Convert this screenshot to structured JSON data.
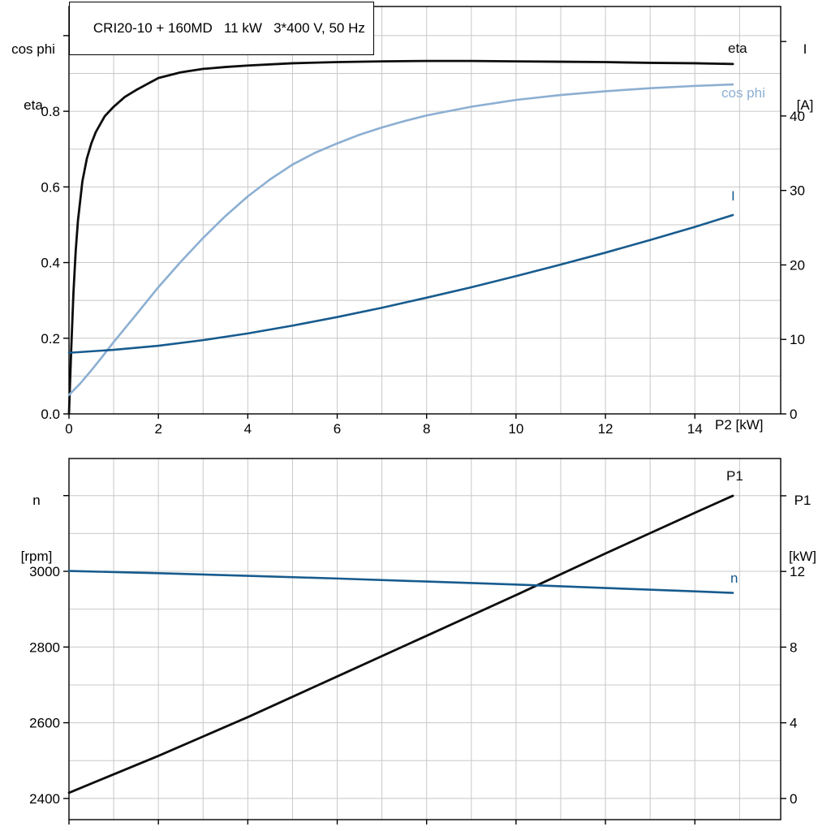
{
  "title": "CRI20-10 + 160MD   11 kW   3*400 V, 50 Hz",
  "style": {
    "background": "#ffffff",
    "grid_color": "#c8c8c8",
    "frame_color": "#000000",
    "text_color": "#000000",
    "black_curve": "#0d0d0d",
    "light_blue_curve": "#8cafd2",
    "dark_blue_curve": "#175b8e"
  },
  "chart_data": [
    {
      "type": "line",
      "name": "motor-electrical-chart",
      "title": "CRI20-10 + 160MD   11 kW   3*400 V, 50 Hz",
      "xlabel": "P2 [kW]",
      "grid": true,
      "x_axis": {
        "range": [
          0,
          15.92
        ],
        "grid_step": 1,
        "ticks": [
          {
            "v": 0,
            "label": "0"
          },
          {
            "v": 2,
            "label": "2"
          },
          {
            "v": 4,
            "label": "4"
          },
          {
            "v": 6,
            "label": "6"
          },
          {
            "v": 8,
            "label": "8"
          },
          {
            "v": 10,
            "label": "10"
          },
          {
            "v": 12,
            "label": "12"
          },
          {
            "v": 14,
            "label": "14"
          }
        ]
      },
      "left_axis": {
        "title_lines": [
          "cos phi",
          "eta"
        ],
        "range": [
          0,
          1.077
        ],
        "grid_step": 0.1,
        "ticks": [
          {
            "v": 0,
            "label": "0.0"
          },
          {
            "v": 0.2,
            "label": "0.2"
          },
          {
            "v": 0.4,
            "label": "0.4"
          },
          {
            "v": 0.6,
            "label": "0.6"
          },
          {
            "v": 0.8,
            "label": "0.8"
          },
          {
            "v": 1.0,
            "label": ""
          }
        ]
      },
      "right_axis": {
        "title_lines": [
          "I",
          "[A]"
        ],
        "range": [
          0,
          54.7
        ],
        "ticks": [
          {
            "v": 0,
            "label": "0"
          },
          {
            "v": 10,
            "label": "10"
          },
          {
            "v": 20,
            "label": "20"
          },
          {
            "v": 30,
            "label": "30"
          },
          {
            "v": 40,
            "label": "40"
          },
          {
            "v": 50,
            "label": ""
          }
        ]
      },
      "series": [
        {
          "name": "eta",
          "label": "eta",
          "axis": "left",
          "color": "#0d0d0d",
          "width": 2.8,
          "x": [
            0,
            0.05,
            0.1,
            0.15,
            0.2,
            0.3,
            0.4,
            0.5,
            0.6,
            0.8,
            1,
            1.25,
            1.5,
            1.75,
            2,
            2.5,
            3,
            3.5,
            4,
            5,
            6,
            7,
            8,
            9,
            10,
            11,
            12,
            13,
            14,
            14.85
          ],
          "y": [
            0,
            0.17,
            0.32,
            0.43,
            0.51,
            0.615,
            0.675,
            0.715,
            0.745,
            0.787,
            0.812,
            0.838,
            0.856,
            0.872,
            0.888,
            0.903,
            0.912,
            0.917,
            0.921,
            0.927,
            0.93,
            0.932,
            0.933,
            0.933,
            0.932,
            0.931,
            0.93,
            0.928,
            0.927,
            0.925
          ]
        },
        {
          "name": "cos-phi",
          "label": "cos phi",
          "axis": "left",
          "color": "#8cafd2",
          "width": 2.6,
          "x": [
            0,
            0.25,
            0.5,
            0.75,
            1,
            1.25,
            1.5,
            2,
            2.5,
            3,
            3.5,
            4,
            4.5,
            5,
            5.5,
            6,
            6.5,
            7,
            7.5,
            8,
            9,
            10,
            11,
            12,
            13,
            14,
            14.85
          ],
          "y": [
            0.05,
            0.08,
            0.115,
            0.152,
            0.19,
            0.226,
            0.262,
            0.335,
            0.402,
            0.465,
            0.523,
            0.575,
            0.62,
            0.659,
            0.69,
            0.715,
            0.738,
            0.757,
            0.774,
            0.789,
            0.812,
            0.83,
            0.843,
            0.853,
            0.861,
            0.867,
            0.871
          ]
        },
        {
          "name": "current",
          "label": "I",
          "axis": "right",
          "color": "#175b8e",
          "width": 2.6,
          "x": [
            0,
            1,
            2,
            3,
            4,
            5,
            6,
            7,
            8,
            9,
            10,
            11,
            12,
            13,
            14,
            14.85
          ],
          "y": [
            8.2,
            8.6,
            9.15,
            9.9,
            10.8,
            11.85,
            13.0,
            14.25,
            15.6,
            17.0,
            18.5,
            20.05,
            21.65,
            23.35,
            25.1,
            26.7
          ]
        }
      ]
    },
    {
      "type": "line",
      "name": "speed-power-chart",
      "title": "",
      "xlabel": "",
      "grid": true,
      "x_axis": {
        "range": [
          0,
          15.92
        ],
        "grid_step": 1,
        "ticks": [
          {
            "v": 0,
            "label": ""
          },
          {
            "v": 2,
            "label": ""
          },
          {
            "v": 4,
            "label": ""
          },
          {
            "v": 6,
            "label": ""
          },
          {
            "v": 8,
            "label": ""
          },
          {
            "v": 10,
            "label": ""
          },
          {
            "v": 12,
            "label": ""
          },
          {
            "v": 14,
            "label": ""
          }
        ]
      },
      "left_axis": {
        "title_lines": [
          "n",
          "[rpm]"
        ],
        "range": [
          2344,
          3298
        ],
        "grid_step": 100,
        "ticks": [
          {
            "v": 2400,
            "label": "2400"
          },
          {
            "v": 2600,
            "label": "2600"
          },
          {
            "v": 2800,
            "label": "2800"
          },
          {
            "v": 3000,
            "label": "3000"
          },
          {
            "v": 3200,
            "label": ""
          }
        ]
      },
      "right_axis": {
        "title_lines": [
          "P1",
          "[kW]"
        ],
        "range": [
          -1.12,
          17.97
        ],
        "ticks": [
          {
            "v": 0,
            "label": "0"
          },
          {
            "v": 4,
            "label": "4"
          },
          {
            "v": 8,
            "label": "8"
          },
          {
            "v": 12,
            "label": "12"
          },
          {
            "v": 16,
            "label": ""
          }
        ]
      },
      "series": [
        {
          "name": "p1-input-power",
          "label": "P1",
          "axis": "right",
          "color": "#0d0d0d",
          "width": 2.8,
          "x": [
            0,
            2,
            4,
            6,
            8,
            10,
            12,
            14,
            14.85
          ],
          "y": [
            0.3,
            2.25,
            4.3,
            6.45,
            8.6,
            10.75,
            12.95,
            15.1,
            16.0
          ]
        },
        {
          "name": "speed",
          "label": "n",
          "axis": "left",
          "color": "#175b8e",
          "width": 2.6,
          "x": [
            0,
            2,
            4,
            6,
            8,
            10,
            12,
            14,
            14.85
          ],
          "y": [
            3001,
            2995,
            2988,
            2981,
            2973,
            2965,
            2956,
            2947,
            2943
          ]
        }
      ]
    }
  ]
}
